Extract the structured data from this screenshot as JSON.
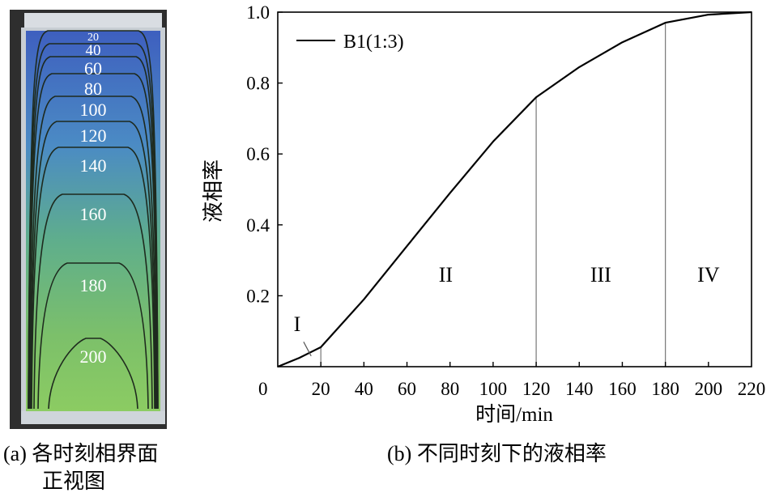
{
  "panel_a": {
    "caption_line1": "(a) 各时刻相界面",
    "caption_line2": "正视图",
    "contour_labels": [
      "20",
      "40",
      "60",
      "80",
      "100",
      "120",
      "140",
      "160",
      "180",
      "200"
    ]
  },
  "panel_b": {
    "caption": "(b) 不同时刻下的液相率"
  },
  "chart_data": {
    "type": "line",
    "xlabel": "时间/min",
    "ylabel": "液相率",
    "xlim": [
      0,
      220
    ],
    "ylim": [
      0,
      1.0
    ],
    "x_ticks": [
      0,
      20,
      40,
      60,
      80,
      100,
      120,
      140,
      160,
      180,
      200,
      220
    ],
    "x_tick_labels": [
      "0",
      "20",
      "40",
      "60",
      "80",
      "100",
      "120",
      "140",
      "160",
      "180",
      "200",
      "220"
    ],
    "y_ticks": [
      0.2,
      0.4,
      0.6,
      0.8,
      1.0
    ],
    "y_tick_labels": [
      "0.2",
      "0.4",
      "0.6",
      "0.8",
      "1.0"
    ],
    "grid": false,
    "legend_position": "top-left",
    "series": [
      {
        "name": "B1(1:3)",
        "color": "#000000",
        "x": [
          0,
          10,
          20,
          40,
          60,
          80,
          100,
          120,
          140,
          160,
          180,
          200,
          220
        ],
        "y": [
          0.0,
          0.025,
          0.055,
          0.19,
          0.34,
          0.49,
          0.635,
          0.76,
          0.845,
          0.915,
          0.97,
          0.993,
          1.0
        ]
      }
    ],
    "stage_dividers_x": [
      20,
      120,
      180
    ],
    "regions": [
      {
        "label": "I",
        "x": 9,
        "y": 0.1
      },
      {
        "label": "II",
        "x": 78,
        "y": 0.24
      },
      {
        "label": "III",
        "x": 150,
        "y": 0.24
      },
      {
        "label": "IV",
        "x": 200,
        "y": 0.24
      }
    ]
  }
}
